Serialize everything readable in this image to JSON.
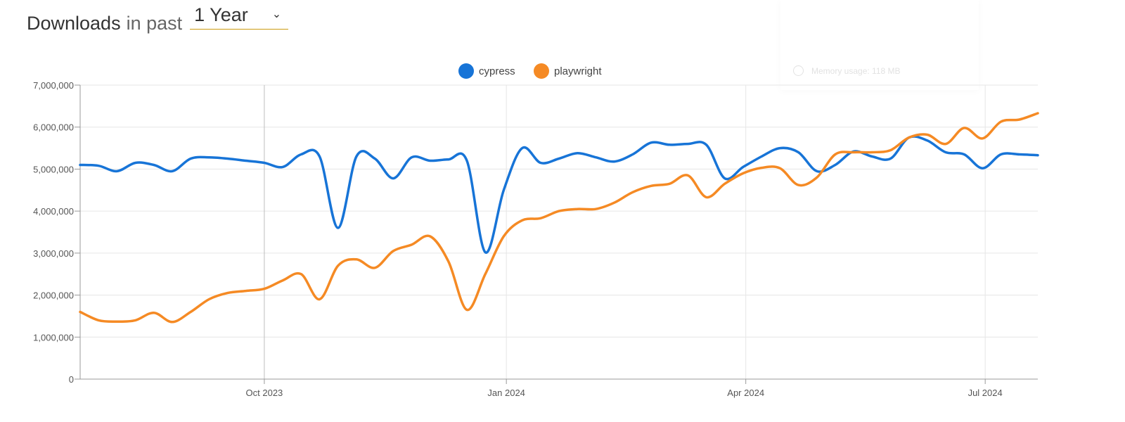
{
  "header": {
    "title": "Downloads",
    "subtitle": "in past",
    "period": "1 Year"
  },
  "overlay": {
    "memory_text": "Memory usage: 118 MB"
  },
  "colors": {
    "cypress": "#1774d7",
    "playwright": "#f58a24",
    "accent": "#cb9b10"
  },
  "icons": {
    "period_dropdown": "chevron-down-icon",
    "memory": "gauge-icon"
  },
  "chart_data": {
    "type": "line",
    "legend": [
      "cypress",
      "playwright"
    ],
    "legend_position": "top-center",
    "xlim": [
      "2023-07-23",
      "2024-07-21"
    ],
    "x_ticks": [
      {
        "date": "2023-10-01",
        "label": "Oct 2023"
      },
      {
        "date": "2024-01-01",
        "label": "Jan 2024"
      },
      {
        "date": "2024-04-01",
        "label": "Apr 2024"
      },
      {
        "date": "2024-07-01",
        "label": "Jul 2024"
      }
    ],
    "ylim": [
      0,
      7000000
    ],
    "y_ticks": [
      "0",
      "1,000,000",
      "2,000,000",
      "3,000,000",
      "4,000,000",
      "5,000,000",
      "6,000,000",
      "7,000,000"
    ],
    "grid": true,
    "x": [
      "2023-07-23",
      "2023-07-30",
      "2023-08-06",
      "2023-08-13",
      "2023-08-20",
      "2023-08-27",
      "2023-09-03",
      "2023-09-10",
      "2023-09-17",
      "2023-09-24",
      "2023-10-01",
      "2023-10-08",
      "2023-10-15",
      "2023-10-22",
      "2023-10-29",
      "2023-11-05",
      "2023-11-12",
      "2023-11-19",
      "2023-11-26",
      "2023-12-03",
      "2023-12-10",
      "2023-12-17",
      "2023-12-24",
      "2023-12-31",
      "2024-01-07",
      "2024-01-14",
      "2024-01-21",
      "2024-01-28",
      "2024-02-04",
      "2024-02-11",
      "2024-02-18",
      "2024-02-25",
      "2024-03-03",
      "2024-03-10",
      "2024-03-17",
      "2024-03-24",
      "2024-03-31",
      "2024-04-07",
      "2024-04-14",
      "2024-04-21",
      "2024-04-28",
      "2024-05-05",
      "2024-05-12",
      "2024-05-19",
      "2024-05-26",
      "2024-06-02",
      "2024-06-09",
      "2024-06-16",
      "2024-06-23",
      "2024-06-30",
      "2024-07-07",
      "2024-07-14",
      "2024-07-21"
    ],
    "series": [
      {
        "name": "cypress",
        "values": [
          5100000,
          5080000,
          4950000,
          5150000,
          5100000,
          4950000,
          5250000,
          5280000,
          5250000,
          5200000,
          5150000,
          5050000,
          5350000,
          5300000,
          3600000,
          5300000,
          5250000,
          4780000,
          5280000,
          5200000,
          5230000,
          5200000,
          3020000,
          4500000,
          5500000,
          5150000,
          5250000,
          5380000,
          5280000,
          5180000,
          5350000,
          5630000,
          5580000,
          5600000,
          5580000,
          4780000,
          5050000,
          5300000,
          5500000,
          5400000,
          4950000,
          5100000,
          5420000,
          5300000,
          5250000,
          5750000,
          5680000,
          5400000,
          5350000,
          5020000,
          5350000,
          5350000,
          5330000
        ]
      },
      {
        "name": "playwright",
        "values": [
          1600000,
          1400000,
          1370000,
          1400000,
          1580000,
          1360000,
          1600000,
          1900000,
          2050000,
          2100000,
          2150000,
          2350000,
          2500000,
          1900000,
          2700000,
          2850000,
          2650000,
          3050000,
          3200000,
          3400000,
          2800000,
          1650000,
          2500000,
          3400000,
          3780000,
          3830000,
          4000000,
          4050000,
          4050000,
          4200000,
          4450000,
          4600000,
          4650000,
          4850000,
          4330000,
          4650000,
          4900000,
          5030000,
          5020000,
          4620000,
          4800000,
          5350000,
          5400000,
          5400000,
          5450000,
          5750000,
          5820000,
          5600000,
          5980000,
          5730000,
          6130000,
          6180000,
          6330000
        ]
      }
    ]
  }
}
